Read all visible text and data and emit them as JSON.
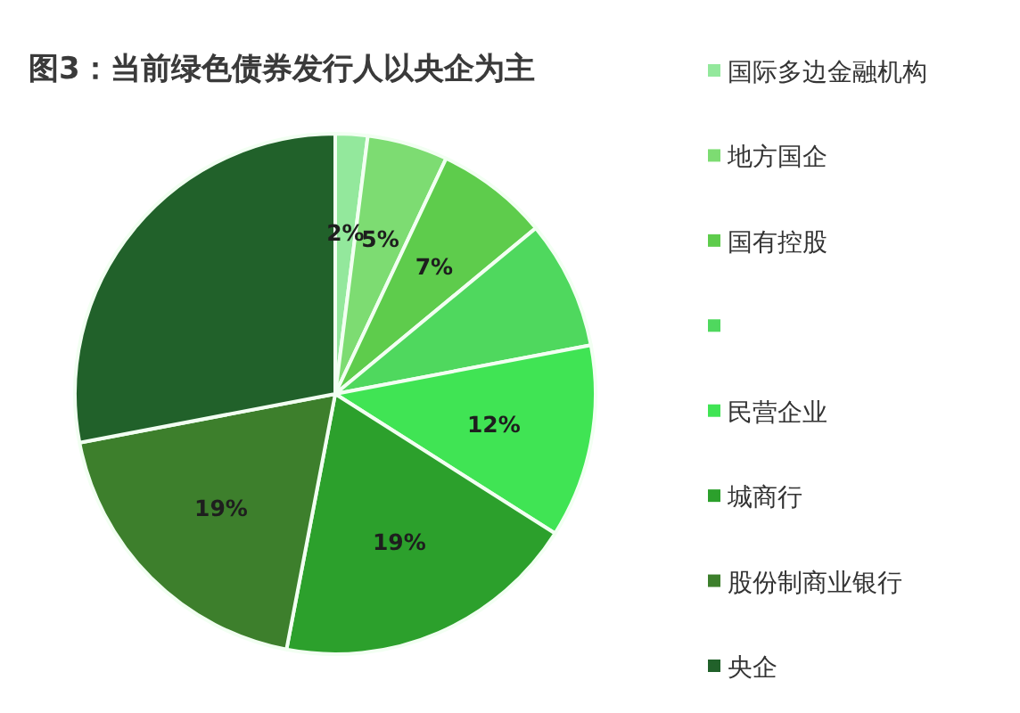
{
  "chart_data": {
    "type": "pie",
    "title": "图3：当前绿色债券发行人以央企为主",
    "categories": [
      "国际多边金融机构",
      "地方国企",
      "国有控股",
      null,
      "民营企业",
      "城商行",
      "股份制商业银行",
      "央企"
    ],
    "values": [
      2,
      5,
      7,
      8,
      12,
      19,
      19,
      28
    ],
    "colors": [
      "#93e89c",
      "#7ddc72",
      "#5ecc4c",
      "#4fd85e",
      "#40e454",
      "#2ca02c",
      "#3d7f2c",
      "#21612a"
    ],
    "value_labels": [
      "2%",
      "5%",
      "7%",
      null,
      "12%",
      "19%",
      "19%",
      null
    ],
    "legend": "right"
  }
}
